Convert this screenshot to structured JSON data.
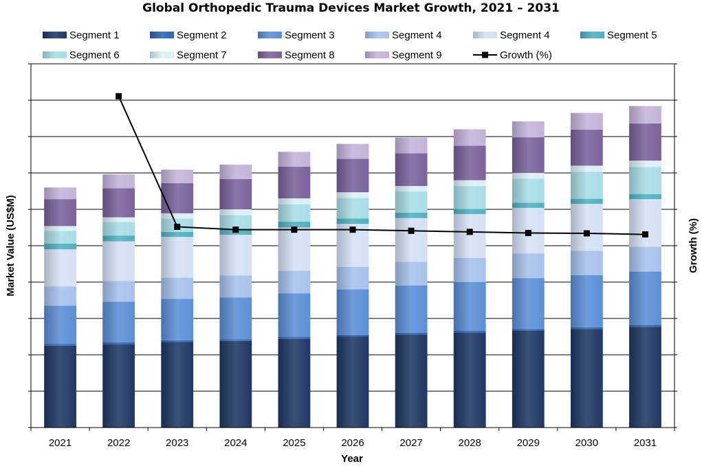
{
  "chart_data": {
    "type": "bar",
    "stacked": true,
    "title": "Global Orthopedic Trauma Devices Market Growth, 2021 – 2031",
    "xlabel": "Year",
    "ylabel": "Market Value (US$M)",
    "y2label": "Growth (%)",
    "ylim": [
      0,
      100
    ],
    "y2lim": [
      0,
      100
    ],
    "grid": true,
    "legend_position": "top",
    "categories": [
      "2021",
      "2022",
      "2023",
      "2024",
      "2025",
      "2026",
      "2027",
      "2028",
      "2029",
      "2030",
      "2031"
    ],
    "series": [
      {
        "name": "Segment 1",
        "color": "#1f3864",
        "values": [
          22.5,
          22.9,
          23.5,
          23.8,
          24.4,
          25.0,
          25.6,
          26.1,
          26.6,
          27.1,
          27.7
        ]
      },
      {
        "name": "Segment 2",
        "color": "#2e64b5",
        "values": [
          0.5,
          0.5,
          0.5,
          0.5,
          0.5,
          0.5,
          0.5,
          0.5,
          0.5,
          0.5,
          0.5
        ]
      },
      {
        "name": "Segment 3",
        "color": "#5b8fd6",
        "values": [
          10.5,
          11.2,
          11.4,
          11.5,
          12.0,
          12.5,
          13.0,
          13.4,
          14.0,
          14.3,
          14.7
        ]
      },
      {
        "name": "Segment 4",
        "color": "#a6c2ec",
        "values": [
          5.3,
          5.7,
          5.8,
          6.0,
          6.2,
          6.2,
          6.5,
          6.6,
          6.8,
          6.7,
          6.8
        ]
      },
      {
        "name": "Segment 4",
        "color": "#d4e1f4",
        "values": [
          10.2,
          10.9,
          11.2,
          11.2,
          11.9,
          11.8,
          12.0,
          12.1,
          12.5,
          12.9,
          13.1
        ]
      },
      {
        "name": "Segment 5",
        "color": "#4fb1c0",
        "values": [
          1.6,
          1.6,
          1.4,
          1.6,
          1.6,
          1.5,
          1.5,
          1.4,
          1.4,
          1.4,
          1.4
        ]
      },
      {
        "name": "Segment 6",
        "color": "#a8dde6",
        "values": [
          3.5,
          3.7,
          3.7,
          3.8,
          4.8,
          5.6,
          5.8,
          6.3,
          6.6,
          7.4,
          7.4
        ]
      },
      {
        "name": "Segment 7",
        "color": "#dceff5",
        "values": [
          1.3,
          1.3,
          1.4,
          1.6,
          1.6,
          1.6,
          1.5,
          1.6,
          1.6,
          1.7,
          1.8
        ]
      },
      {
        "name": "Segment 8",
        "color": "#7a629c",
        "values": [
          7.4,
          8.0,
          8.3,
          8.3,
          8.7,
          9.2,
          9.0,
          9.5,
          9.8,
          9.9,
          10.2
        ]
      },
      {
        "name": "Segment 9",
        "color": "#c4b3d8",
        "values": [
          3.2,
          3.8,
          3.7,
          4.0,
          4.1,
          4.1,
          4.3,
          4.5,
          4.4,
          4.6,
          4.8
        ]
      }
    ],
    "line_series": {
      "name": "Growth (%)",
      "axis": "secondary",
      "color": "#000000",
      "values": [
        null,
        91.1,
        55.2,
        54.4,
        54.4,
        54.4,
        54.1,
        53.8,
        53.5,
        53.4,
        53.1
      ]
    }
  }
}
